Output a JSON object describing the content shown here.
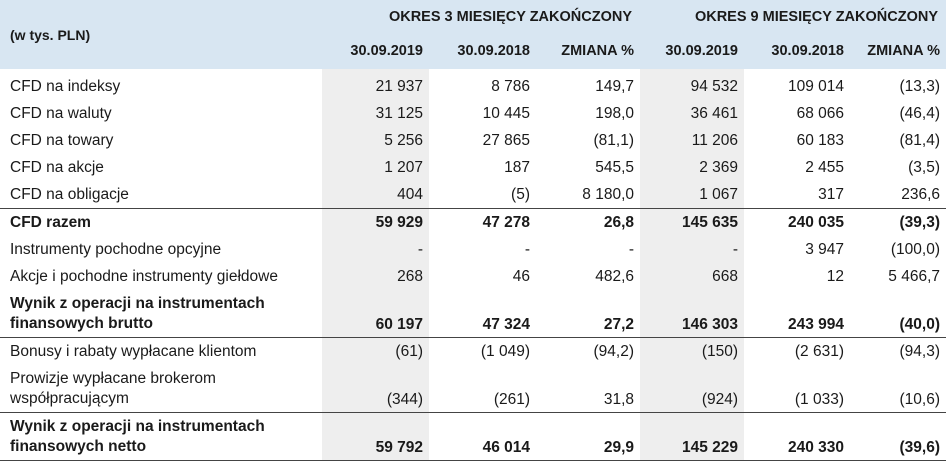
{
  "header": {
    "unit_label": "(w tys. PLN)",
    "period_3m": "OKRES 3 MIESIĘCY ZAKOŃCZONY",
    "period_9m": "OKRES 9 MIESIĘCY ZAKOŃCZONY",
    "columns": [
      "30.09.2019",
      "30.09.2018",
      "ZMIANA %",
      "30.09.2019",
      "30.09.2018",
      "ZMIANA %"
    ]
  },
  "rows": [
    {
      "label": "CFD na indeksy",
      "values": [
        "21 937",
        "8 786",
        "149,7",
        "94 532",
        "109 014",
        "(13,3)"
      ]
    },
    {
      "label": "CFD na waluty",
      "values": [
        "31 125",
        "10 445",
        "198,0",
        "36 461",
        "68 066",
        "(46,4)"
      ]
    },
    {
      "label": "CFD na towary",
      "values": [
        "5 256",
        "27 865",
        "(81,1)",
        "11 206",
        "60 183",
        "(81,4)"
      ]
    },
    {
      "label": "CFD na akcje",
      "values": [
        "1 207",
        "187",
        "545,5",
        "2 369",
        "2 455",
        "(3,5)"
      ]
    },
    {
      "label": "CFD na obligacje",
      "values": [
        "404",
        "(5)",
        "8 180,0",
        "1 067",
        "317",
        "236,6"
      ]
    },
    {
      "label": "CFD razem",
      "values": [
        "59 929",
        "47 278",
        "26,8",
        "145 635",
        "240 035",
        "(39,3)"
      ]
    },
    {
      "label": "Instrumenty pochodne opcyjne",
      "values": [
        "-",
        "-",
        "-",
        "-",
        "3 947",
        "(100,0)"
      ]
    },
    {
      "label": "Akcje i pochodne instrumenty giełdowe",
      "values": [
        "268",
        "46",
        "482,6",
        "668",
        "12",
        "5 466,7"
      ]
    },
    {
      "label": "Wynik z operacji na instrumentach finansowych brutto",
      "values": [
        "60 197",
        "47 324",
        "27,2",
        "146 303",
        "243 994",
        "(40,0)"
      ]
    },
    {
      "label": "Bonusy i rabaty wypłacane klientom",
      "values": [
        "(61)",
        "(1 049)",
        "(94,2)",
        "(150)",
        "(2 631)",
        "(94,3)"
      ]
    },
    {
      "label": "Prowizje wypłacane brokerom współpracującym",
      "values": [
        "(344)",
        "(261)",
        "31,8",
        "(924)",
        "(1 033)",
        "(10,6)"
      ]
    },
    {
      "label": "Wynik z operacji na instrumentach finansowych netto",
      "values": [
        "59 792",
        "46 014",
        "29,9",
        "145 229",
        "240 330",
        "(39,6)"
      ]
    }
  ]
}
